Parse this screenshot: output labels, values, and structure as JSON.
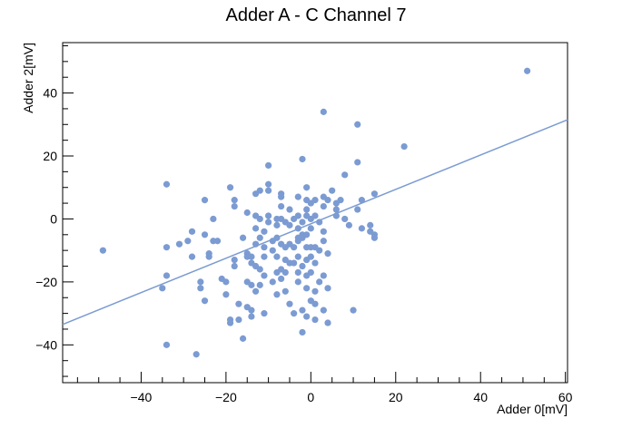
{
  "chart_data": {
    "type": "scatter",
    "title": "Adder A - C Channel 7",
    "xlabel": "Adder 0[mV]",
    "ylabel": "Adder 2[mV]",
    "xlim": [
      -58.5,
      60.5
    ],
    "ylim": [
      -52,
      56
    ],
    "xticks": [
      -40,
      -20,
      0,
      20,
      40,
      60
    ],
    "yticks": [
      -40,
      -20,
      0,
      20,
      40
    ],
    "x_tick_labels": [
      "−40",
      "−20",
      "0",
      "20",
      "40",
      "60"
    ],
    "y_tick_labels": [
      "−40",
      "−20",
      "0",
      "20",
      "40"
    ],
    "grid": false,
    "marker_color": "#7b9bd2",
    "line_color": "#7b9bd2",
    "fit_line": {
      "x": [
        -58.5,
        60.5
      ],
      "y": [
        -33.5,
        31.5
      ]
    },
    "points": [
      [
        51,
        47
      ],
      [
        3,
        34
      ],
      [
        11,
        30
      ],
      [
        22,
        23
      ],
      [
        -34,
        11
      ],
      [
        -49,
        -10
      ],
      [
        -35,
        -22
      ],
      [
        -34,
        -18
      ],
      [
        -34,
        -9
      ],
      [
        -34,
        -40
      ],
      [
        -27,
        -43
      ],
      [
        -31,
        -8
      ],
      [
        -29,
        -7
      ],
      [
        -28,
        -4
      ],
      [
        -28,
        -12
      ],
      [
        -26,
        -20
      ],
      [
        -26,
        -22
      ],
      [
        -25,
        -26
      ],
      [
        -25,
        6
      ],
      [
        -25,
        -5
      ],
      [
        -24,
        -11
      ],
      [
        -24,
        -12
      ],
      [
        -23,
        0
      ],
      [
        -23,
        -7
      ],
      [
        -22,
        -7
      ],
      [
        -21,
        -19
      ],
      [
        -20,
        -20
      ],
      [
        -20,
        -24
      ],
      [
        -19,
        10
      ],
      [
        -19,
        -32
      ],
      [
        -19,
        -33
      ],
      [
        -18,
        6
      ],
      [
        -18,
        4
      ],
      [
        -18,
        -15
      ],
      [
        -18,
        -13
      ],
      [
        -17,
        -27
      ],
      [
        -17,
        -32
      ],
      [
        -16,
        -6
      ],
      [
        -16,
        -38
      ],
      [
        -15,
        2
      ],
      [
        -15,
        -11
      ],
      [
        -15,
        -12
      ],
      [
        -15,
        -20
      ],
      [
        -15,
        -28
      ],
      [
        -14,
        -12
      ],
      [
        -14,
        -14
      ],
      [
        -14,
        -21
      ],
      [
        -14,
        -29
      ],
      [
        -14,
        -31
      ],
      [
        -13,
        8
      ],
      [
        -13,
        1
      ],
      [
        -13,
        -3
      ],
      [
        -13,
        -8
      ],
      [
        -13,
        -15
      ],
      [
        -13,
        -23
      ],
      [
        -12,
        9
      ],
      [
        -12,
        0
      ],
      [
        -12,
        -6
      ],
      [
        -12,
        -16
      ],
      [
        -12,
        -21
      ],
      [
        -11,
        -4
      ],
      [
        -11,
        -9
      ],
      [
        -11,
        -12
      ],
      [
        -11,
        -18
      ],
      [
        -11,
        -30
      ],
      [
        -10,
        17
      ],
      [
        -10,
        11
      ],
      [
        -10,
        9
      ],
      [
        -10,
        1
      ],
      [
        -10,
        -1
      ],
      [
        -9,
        -7
      ],
      [
        -9,
        -10
      ],
      [
        -9,
        -20
      ],
      [
        -8,
        0
      ],
      [
        -8,
        -2
      ],
      [
        -8,
        -6
      ],
      [
        -8,
        -12
      ],
      [
        -8,
        -17
      ],
      [
        -8,
        -24
      ],
      [
        -7,
        8
      ],
      [
        -7,
        7
      ],
      [
        -7,
        4
      ],
      [
        -7,
        0
      ],
      [
        -7,
        -8
      ],
      [
        -7,
        -16
      ],
      [
        -7,
        -19
      ],
      [
        -6,
        -1
      ],
      [
        -6,
        -9
      ],
      [
        -6,
        -13
      ],
      [
        -6,
        -17
      ],
      [
        -6,
        -23
      ],
      [
        -5,
        3
      ],
      [
        -5,
        -2
      ],
      [
        -5,
        -8
      ],
      [
        -5,
        -14
      ],
      [
        -5,
        -27
      ],
      [
        -4,
        0
      ],
      [
        -4,
        -9
      ],
      [
        -4,
        -14
      ],
      [
        -4,
        -30
      ],
      [
        -3,
        7
      ],
      [
        -3,
        1
      ],
      [
        -3,
        -3
      ],
      [
        -3,
        -6
      ],
      [
        -3,
        -7
      ],
      [
        -3,
        -12
      ],
      [
        -3,
        -17
      ],
      [
        -3,
        -20
      ],
      [
        -2,
        19
      ],
      [
        -2,
        -1
      ],
      [
        -2,
        -5
      ],
      [
        -2,
        -6
      ],
      [
        -2,
        -15
      ],
      [
        -2,
        -29
      ],
      [
        -2,
        -36
      ],
      [
        -1,
        10
      ],
      [
        -1,
        6
      ],
      [
        -1,
        3
      ],
      [
        -1,
        1
      ],
      [
        -1,
        -5
      ],
      [
        -1,
        -9
      ],
      [
        -1,
        -13
      ],
      [
        -1,
        -18
      ],
      [
        -1,
        -22
      ],
      [
        -1,
        -31
      ],
      [
        0,
        5
      ],
      [
        0,
        0
      ],
      [
        0,
        -3
      ],
      [
        0,
        -9
      ],
      [
        0,
        -12
      ],
      [
        0,
        -17
      ],
      [
        0,
        -26
      ],
      [
        1,
        6
      ],
      [
        1,
        1
      ],
      [
        1,
        -9
      ],
      [
        1,
        -14
      ],
      [
        1,
        -23
      ],
      [
        1,
        -27
      ],
      [
        1,
        -32
      ],
      [
        2,
        -1
      ],
      [
        2,
        -10
      ],
      [
        2,
        -20
      ],
      [
        3,
        7
      ],
      [
        3,
        4
      ],
      [
        3,
        -4
      ],
      [
        3,
        -7
      ],
      [
        3,
        -18
      ],
      [
        3,
        -29
      ],
      [
        4,
        6
      ],
      [
        4,
        -11
      ],
      [
        4,
        -22
      ],
      [
        4,
        -33
      ],
      [
        5,
        9
      ],
      [
        6,
        5
      ],
      [
        6,
        1
      ],
      [
        6,
        3
      ],
      [
        7,
        6
      ],
      [
        8,
        14
      ],
      [
        8,
        0
      ],
      [
        9,
        -2
      ],
      [
        10,
        -29
      ],
      [
        11,
        18
      ],
      [
        11,
        3
      ],
      [
        12,
        6
      ],
      [
        12,
        -3
      ],
      [
        14,
        -2
      ],
      [
        14,
        -4
      ],
      [
        15,
        8
      ],
      [
        15,
        -5
      ],
      [
        15,
        -6
      ]
    ]
  }
}
